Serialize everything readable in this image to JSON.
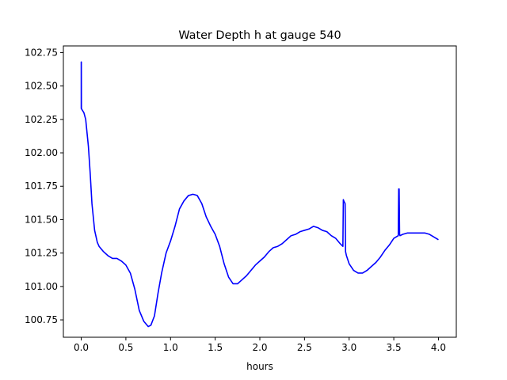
{
  "chart_data": {
    "type": "line",
    "title": "Water Depth h at gauge 540",
    "xlabel": "hours",
    "ylabel": "",
    "xlim": [
      -0.2,
      4.2
    ],
    "ylim": [
      100.62,
      102.8
    ],
    "xticks": [
      0.0,
      0.5,
      1.0,
      1.5,
      2.0,
      2.5,
      3.0,
      3.5,
      4.0
    ],
    "xtick_labels": [
      "0.0",
      "0.5",
      "1.0",
      "1.5",
      "2.0",
      "2.5",
      "3.0",
      "3.5",
      "4.0"
    ],
    "yticks": [
      100.75,
      101.0,
      101.25,
      101.5,
      101.75,
      102.0,
      102.25,
      102.5,
      102.75
    ],
    "ytick_labels": [
      "100.75",
      "101.00",
      "101.25",
      "101.50",
      "101.75",
      "102.00",
      "102.25",
      "102.50",
      "102.75"
    ],
    "grid": false,
    "colors": {
      "line": "#0000ff"
    },
    "series": [
      {
        "x": [
          0.0,
          0.0,
          0.001,
          0.002,
          0.03,
          0.05,
          0.08,
          0.1,
          0.12,
          0.15,
          0.18,
          0.2,
          0.25,
          0.3,
          0.35,
          0.4,
          0.45,
          0.5,
          0.55,
          0.6,
          0.65,
          0.7,
          0.75,
          0.78,
          0.82,
          0.86,
          0.9,
          0.95,
          1.0,
          1.05,
          1.1,
          1.15,
          1.2,
          1.25,
          1.28,
          1.3,
          1.35,
          1.4,
          1.45,
          1.5,
          1.55,
          1.6,
          1.65,
          1.7,
          1.75,
          1.8,
          1.85,
          1.9,
          1.95,
          2.0,
          2.05,
          2.1,
          2.15,
          2.2,
          2.25,
          2.3,
          2.35,
          2.4,
          2.45,
          2.5,
          2.55,
          2.6,
          2.65,
          2.7,
          2.75,
          2.8,
          2.85,
          2.9,
          2.93,
          2.935,
          2.94,
          2.955,
          2.96,
          2.97,
          3.0,
          3.05,
          3.1,
          3.15,
          3.2,
          3.25,
          3.3,
          3.35,
          3.4,
          3.45,
          3.5,
          3.55,
          3.555,
          3.56,
          3.565,
          3.57,
          3.6,
          3.65,
          3.7,
          3.75,
          3.8,
          3.85,
          3.9,
          3.95,
          4.0
        ],
        "y": [
          102.33,
          102.68,
          102.68,
          102.33,
          102.3,
          102.25,
          102.05,
          101.85,
          101.62,
          101.42,
          101.33,
          101.3,
          101.26,
          101.23,
          101.21,
          101.21,
          101.19,
          101.16,
          101.1,
          100.98,
          100.82,
          100.74,
          100.7,
          100.71,
          100.78,
          100.95,
          101.1,
          101.25,
          101.34,
          101.45,
          101.58,
          101.64,
          101.68,
          101.69,
          101.685,
          101.68,
          101.62,
          101.52,
          101.45,
          101.39,
          101.3,
          101.17,
          101.07,
          101.02,
          101.02,
          101.05,
          101.08,
          101.12,
          101.16,
          101.19,
          101.22,
          101.26,
          101.29,
          101.3,
          101.32,
          101.35,
          101.38,
          101.39,
          101.41,
          101.42,
          101.43,
          101.45,
          101.44,
          101.42,
          101.41,
          101.38,
          101.36,
          101.32,
          101.3,
          101.65,
          101.64,
          101.62,
          101.26,
          101.23,
          101.17,
          101.12,
          101.1,
          101.1,
          101.12,
          101.15,
          101.18,
          101.22,
          101.27,
          101.31,
          101.36,
          101.38,
          101.73,
          101.73,
          101.39,
          101.38,
          101.39,
          101.4,
          101.4,
          101.4,
          101.4,
          101.4,
          101.39,
          101.37,
          101.35
        ]
      }
    ]
  }
}
